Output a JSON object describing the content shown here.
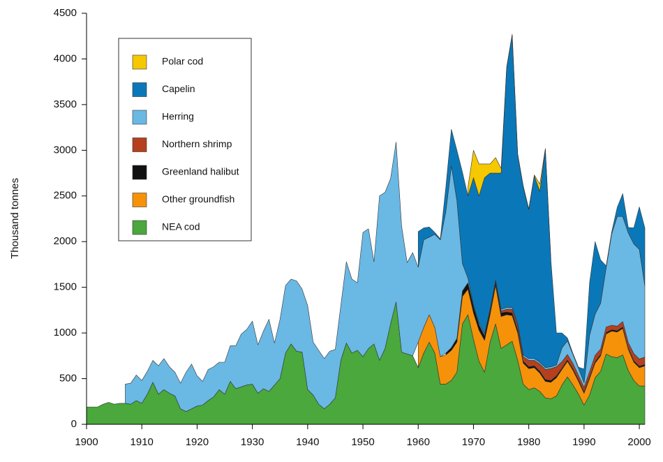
{
  "chart_data": {
    "type": "stacked_area",
    "y_label": "Thousand tonnes",
    "legend": "upper left",
    "xlim": [
      1900,
      2001
    ],
    "ylim": [
      0,
      4500
    ],
    "xticks": [
      1900,
      1910,
      1920,
      1930,
      1940,
      1950,
      1960,
      1970,
      1980,
      1990,
      2000
    ],
    "yticks": [
      0,
      500,
      1000,
      1500,
      2000,
      2500,
      3000,
      3500,
      4000,
      4500
    ],
    "x": [
      1900,
      1901,
      1902,
      1903,
      1904,
      1905,
      1906,
      1907,
      1908,
      1909,
      1910,
      1911,
      1912,
      1913,
      1914,
      1915,
      1916,
      1917,
      1918,
      1919,
      1920,
      1921,
      1922,
      1923,
      1924,
      1925,
      1926,
      1927,
      1928,
      1929,
      1930,
      1931,
      1932,
      1933,
      1934,
      1935,
      1936,
      1937,
      1938,
      1939,
      1940,
      1941,
      1942,
      1943,
      1944,
      1945,
      1946,
      1947,
      1948,
      1949,
      1950,
      1951,
      1952,
      1953,
      1954,
      1955,
      1956,
      1957,
      1958,
      1959,
      1960,
      1961,
      1962,
      1963,
      1964,
      1965,
      1966,
      1967,
      1968,
      1969,
      1970,
      1971,
      1972,
      1973,
      1974,
      1975,
      1976,
      1977,
      1978,
      1979,
      1980,
      1981,
      1982,
      1983,
      1984,
      1985,
      1986,
      1987,
      1988,
      1989,
      1990,
      1991,
      1992,
      1993,
      1994,
      1995,
      1996,
      1997,
      1998,
      1999,
      2000,
      2001
    ],
    "series": [
      {
        "name": "NEA cod",
        "color": "#4aa83c",
        "values": [
          190,
          190,
          190,
          220,
          240,
          220,
          230,
          230,
          220,
          260,
          230,
          330,
          460,
          330,
          380,
          340,
          310,
          170,
          140,
          170,
          200,
          210,
          260,
          300,
          380,
          330,
          470,
          390,
          410,
          430,
          440,
          340,
          390,
          360,
          430,
          500,
          780,
          880,
          800,
          790,
          380,
          320,
          220,
          170,
          220,
          290,
          700,
          890,
          780,
          810,
          740,
          830,
          880,
          700,
          830,
          1100,
          1340,
          790,
          770,
          750,
          620,
          780,
          900,
          780,
          440,
          440,
          480,
          570,
          1100,
          1200,
          930,
          690,
          570,
          900,
          1100,
          830,
          870,
          910,
          700,
          440,
          380,
          400,
          360,
          290,
          280,
          310,
          430,
          520,
          430,
          330,
          210,
          320,
          510,
          580,
          770,
          740,
          730,
          760,
          590,
          480,
          420,
          420
        ]
      },
      {
        "name": "Other groundfish",
        "color": "#f5920a",
        "values": [
          null,
          null,
          null,
          null,
          null,
          null,
          null,
          null,
          null,
          null,
          null,
          null,
          null,
          null,
          null,
          null,
          null,
          null,
          null,
          null,
          null,
          null,
          null,
          null,
          null,
          null,
          null,
          null,
          null,
          null,
          null,
          null,
          null,
          null,
          null,
          null,
          null,
          null,
          null,
          null,
          null,
          null,
          null,
          null,
          null,
          null,
          null,
          null,
          null,
          null,
          null,
          null,
          null,
          null,
          null,
          null,
          null,
          null,
          null,
          null,
          280,
          280,
          300,
          280,
          300,
          320,
          330,
          330,
          300,
          280,
          290,
          340,
          350,
          300,
          420,
          350,
          330,
          280,
          300,
          230,
          230,
          220,
          200,
          180,
          180,
          200,
          170,
          170,
          160,
          140,
          130,
          180,
          160,
          170,
          220,
          280,
          280,
          290,
          230,
          200,
          200,
          220
        ]
      },
      {
        "name": "Greenland halibut",
        "color": "#111111",
        "values": [
          null,
          null,
          null,
          null,
          null,
          null,
          null,
          null,
          null,
          null,
          null,
          null,
          null,
          null,
          null,
          null,
          null,
          null,
          null,
          null,
          null,
          null,
          null,
          null,
          null,
          null,
          null,
          null,
          null,
          null,
          null,
          null,
          null,
          null,
          null,
          null,
          null,
          null,
          null,
          null,
          null,
          null,
          null,
          null,
          null,
          null,
          null,
          null,
          null,
          null,
          null,
          null,
          null,
          null,
          null,
          null,
          null,
          null,
          null,
          null,
          null,
          null,
          null,
          null,
          null,
          20,
          30,
          40,
          60,
          70,
          70,
          60,
          50,
          40,
          40,
          40,
          30,
          30,
          30,
          20,
          20,
          20,
          20,
          20,
          20,
          20,
          15,
          15,
          15,
          15,
          15,
          15,
          15,
          15,
          15,
          15,
          15,
          15,
          15,
          15,
          15,
          15
        ]
      },
      {
        "name": "Northern shrimp",
        "color": "#b5401e",
        "values": [
          null,
          null,
          null,
          null,
          null,
          null,
          null,
          null,
          null,
          null,
          null,
          null,
          null,
          null,
          null,
          null,
          null,
          null,
          null,
          null,
          null,
          null,
          null,
          null,
          null,
          null,
          null,
          null,
          null,
          null,
          null,
          null,
          null,
          null,
          null,
          null,
          null,
          null,
          null,
          null,
          null,
          null,
          null,
          null,
          null,
          null,
          null,
          null,
          null,
          null,
          null,
          null,
          null,
          null,
          null,
          null,
          null,
          null,
          null,
          null,
          null,
          null,
          null,
          null,
          null,
          null,
          null,
          null,
          null,
          null,
          null,
          null,
          null,
          null,
          null,
          20,
          30,
          40,
          50,
          50,
          70,
          60,
          80,
          110,
          130,
          100,
          70,
          60,
          60,
          50,
          50,
          60,
          70,
          60,
          60,
          50,
          50,
          60,
          60,
          80,
          80,
          80
        ]
      },
      {
        "name": "Herring",
        "color": "#6ab8e4",
        "values": [
          null,
          null,
          null,
          null,
          null,
          null,
          null,
          210,
          230,
          280,
          250,
          250,
          240,
          310,
          340,
          290,
          260,
          280,
          430,
          490,
          330,
          260,
          340,
          330,
          300,
          350,
          390,
          470,
          580,
          610,
          690,
          530,
          630,
          790,
          460,
          650,
          740,
          710,
          770,
          690,
          920,
          580,
          590,
          550,
          580,
          530,
          600,
          890,
          810,
          740,
          1360,
          1310,
          900,
          1800,
          1710,
          1590,
          1750,
          1380,
          1000,
          1130,
          820,
          960,
          850,
          1020,
          1280,
          1550,
          1990,
          1510,
          300,
          50,
          20,
          20,
          20,
          20,
          20,
          20,
          20,
          20,
          20,
          20,
          20,
          20,
          20,
          20,
          20,
          20,
          150,
          150,
          100,
          80,
          50,
          400,
          450,
          500,
          650,
          1000,
          1200,
          1150,
          1200,
          1200,
          1200,
          780
        ]
      },
      {
        "name": "Capelin",
        "color": "#0a78b8",
        "values": [
          null,
          null,
          null,
          null,
          null,
          null,
          null,
          null,
          null,
          null,
          null,
          null,
          null,
          null,
          null,
          null,
          null,
          null,
          null,
          null,
          null,
          null,
          null,
          null,
          null,
          null,
          null,
          null,
          null,
          null,
          null,
          null,
          null,
          null,
          null,
          null,
          null,
          null,
          null,
          null,
          null,
          null,
          null,
          null,
          null,
          null,
          null,
          null,
          null,
          null,
          null,
          null,
          null,
          null,
          null,
          null,
          null,
          null,
          null,
          null,
          390,
          130,
          110,
          20,
          10,
          270,
          400,
          550,
          1000,
          900,
          1390,
          1390,
          1710,
          1490,
          1170,
          1490,
          2620,
          2980,
          1850,
          1840,
          1630,
          2000,
          1870,
          2390,
          1170,
          350,
          165,
          30,
          10,
          10,
          150,
          575,
          795,
          475,
          20,
          20,
          100,
          250,
          60,
          175,
          465,
          635
        ]
      },
      {
        "name": "Polar cod",
        "color": "#f5c800",
        "values": [
          null,
          null,
          null,
          null,
          null,
          null,
          null,
          null,
          null,
          null,
          null,
          null,
          null,
          null,
          null,
          null,
          null,
          null,
          null,
          null,
          null,
          null,
          null,
          null,
          null,
          null,
          null,
          null,
          null,
          null,
          null,
          null,
          null,
          null,
          null,
          null,
          null,
          null,
          null,
          null,
          null,
          null,
          null,
          null,
          null,
          null,
          null,
          null,
          null,
          null,
          null,
          null,
          null,
          null,
          null,
          null,
          null,
          null,
          null,
          null,
          null,
          null,
          null,
          null,
          null,
          null,
          null,
          null,
          null,
          100,
          300,
          350,
          150,
          100,
          170,
          50,
          10,
          10,
          10,
          10,
          10,
          10,
          80,
          10,
          10,
          null,
          null,
          null,
          null,
          null,
          null,
          null,
          null,
          null,
          null,
          null,
          null,
          null,
          null,
          null,
          null,
          null
        ]
      }
    ]
  }
}
